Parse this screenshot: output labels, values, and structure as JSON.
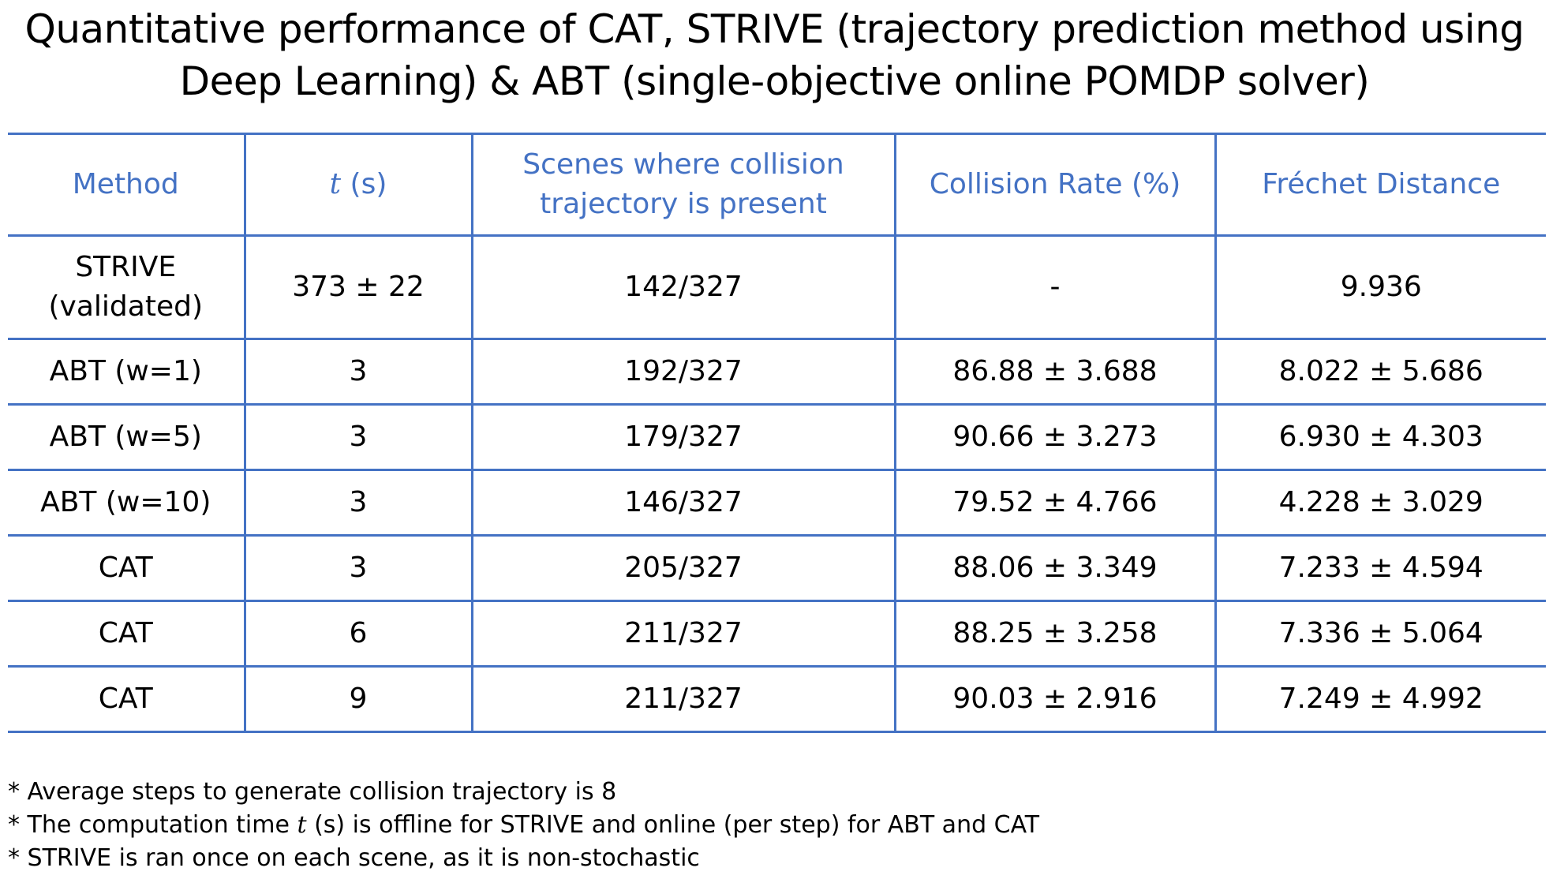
{
  "title": {
    "line1": "Quantitative performance of CAT,  STRIVE  (trajectory prediction method using",
    "line2": "Deep Learning) & ABT (single-objective online POMDP solver)"
  },
  "table": {
    "headers": {
      "method": "Method",
      "t_var": "t",
      "t_unit": " (s)",
      "scenes_line1": "Scenes where collision",
      "scenes_line2": "trajectory is present",
      "collision_rate": "Collision Rate (%)",
      "frechet": "Fréchet Distance"
    },
    "strive_row": {
      "method_line1": "STRIVE",
      "method_line2": "(validated)",
      "t": "373 ± 22",
      "scenes": "142/327",
      "collision_rate": "-",
      "frechet": "9.936"
    },
    "rows": [
      {
        "method": "ABT (w=1)",
        "t": "3",
        "scenes": "192/327",
        "collision_rate": "86.88 ± 3.688",
        "frechet": "8.022 ± 5.686"
      },
      {
        "method": "ABT (w=5)",
        "t": "3",
        "scenes": "179/327",
        "collision_rate": "90.66 ± 3.273",
        "frechet": "6.930 ± 4.303"
      },
      {
        "method": "ABT (w=10)",
        "t": "3",
        "scenes": "146/327",
        "collision_rate": "79.52 ± 4.766",
        "frechet": "4.228 ± 3.029"
      },
      {
        "method": "CAT",
        "t": "3",
        "scenes": "205/327",
        "collision_rate": "88.06 ± 3.349",
        "frechet": "7.233 ± 4.594"
      },
      {
        "method": "CAT",
        "t": "6",
        "scenes": "211/327",
        "collision_rate": "88.25 ± 3.258",
        "frechet": "7.336 ± 5.064"
      },
      {
        "method": "CAT",
        "t": "9",
        "scenes": "211/327",
        "collision_rate": "90.03 ± 2.916",
        "frechet": "7.249 ± 4.992"
      }
    ]
  },
  "notes": {
    "note1": "* Average steps to generate collision trajectory is 8",
    "note2_before": "* The computation time ",
    "note2_var": "t",
    "note2_after": " (s) is offline for STRIVE and online (per step) for ABT and CAT",
    "note3": "* STRIVE is ran once on each scene, as it is non-stochastic"
  },
  "colors": {
    "accent": "#4472c4",
    "text": "#000000",
    "background": "#ffffff"
  }
}
